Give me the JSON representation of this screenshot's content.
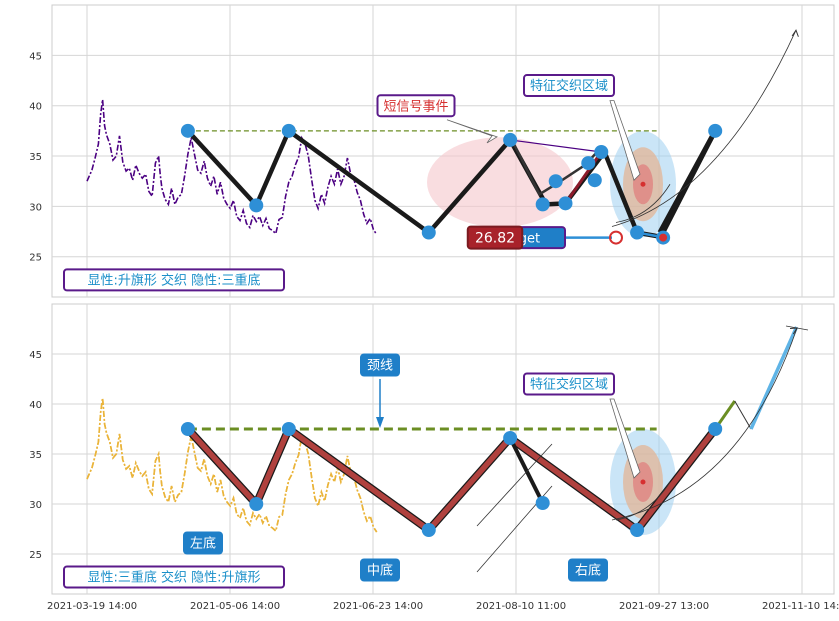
{
  "chart_data": [
    {
      "type": "line",
      "panel": "top",
      "ylim": [
        21,
        50
      ],
      "yticks": [
        25,
        30,
        35,
        40,
        45
      ],
      "xticks": [
        "2021-03-19 14:00",
        "2021-05-06 14:00",
        "2021-06-23 14:00",
        "2021-08-10 11:00",
        "2021-09-27 13:00",
        "2021-11-10 14:00"
      ],
      "grid": true,
      "series": [
        {
          "role": "price",
          "color": "#4b0082",
          "style": "dash-dot",
          "values": [
            [
              0,
              32.5
            ],
            [
              1.5,
              33.6
            ],
            [
              2.5,
              34.8
            ],
            [
              3.5,
              36.2
            ],
            [
              4.2,
              39.2
            ],
            [
              4.8,
              40.6
            ],
            [
              5.4,
              38.0
            ],
            [
              6,
              37.1
            ],
            [
              7,
              36.2
            ],
            [
              8,
              34.6
            ],
            [
              9,
              35.0
            ],
            [
              10,
              37.0
            ],
            [
              11,
              34.4
            ],
            [
              12,
              33.5
            ],
            [
              13,
              33.8
            ],
            [
              14,
              32.6
            ],
            [
              15,
              34.1
            ],
            [
              16,
              33.3
            ],
            [
              17,
              32.8
            ],
            [
              18,
              33.2
            ],
            [
              19,
              31.5
            ],
            [
              20,
              31.0
            ],
            [
              21,
              34.3
            ],
            [
              22,
              35.0
            ],
            [
              22.5,
              33.2
            ],
            [
              23,
              31.8
            ],
            [
              24,
              30.7
            ],
            [
              25,
              30.2
            ],
            [
              26,
              31.8
            ],
            [
              27,
              30.2
            ],
            [
              28,
              30.9
            ],
            [
              29,
              31.2
            ],
            [
              30,
              33.0
            ],
            [
              31,
              35.2
            ],
            [
              32,
              36.8
            ],
            [
              33,
              35.2
            ],
            [
              34,
              33.6
            ],
            [
              35,
              33.3
            ],
            [
              36,
              34.5
            ],
            [
              37,
              32.8
            ],
            [
              38,
              32.0
            ],
            [
              39,
              33.0
            ],
            [
              40,
              31.2
            ],
            [
              41,
              32.4
            ],
            [
              42,
              30.8
            ],
            [
              43,
              30.2
            ],
            [
              44,
              29.8
            ],
            [
              45,
              30.6
            ],
            [
              46,
              29.0
            ],
            [
              47,
              28.6
            ],
            [
              48,
              29.6
            ],
            [
              49,
              28.3
            ],
            [
              50,
              27.9
            ],
            [
              51,
              29.1
            ],
            [
              52,
              28.5
            ],
            [
              53,
              29.0
            ],
            [
              54,
              28.1
            ],
            [
              55,
              28.8
            ],
            [
              56,
              27.8
            ],
            [
              57,
              27.6
            ],
            [
              58,
              27.3
            ],
            [
              59,
              28.7
            ],
            [
              60,
              28.9
            ],
            [
              61,
              31.0
            ],
            [
              62,
              32.4
            ],
            [
              63,
              33.0
            ],
            [
              64,
              34.1
            ],
            [
              65,
              34.9
            ],
            [
              66,
              36.8
            ],
            [
              67,
              36.2
            ],
            [
              68,
              35.0
            ],
            [
              69,
              32.7
            ],
            [
              70,
              30.6
            ],
            [
              71,
              29.8
            ],
            [
              72,
              31.2
            ],
            [
              73,
              30.3
            ],
            [
              74,
              31.9
            ],
            [
              75,
              33.0
            ],
            [
              76,
              32.2
            ],
            [
              77,
              33.7
            ],
            [
              78,
              32.2
            ],
            [
              79,
              33.0
            ],
            [
              80,
              34.8
            ],
            [
              81,
              33.2
            ],
            [
              82,
              32.7
            ],
            [
              83,
              31.4
            ],
            [
              84,
              30.6
            ],
            [
              85,
              29.2
            ],
            [
              86,
              28.3
            ],
            [
              87,
              28.8
            ],
            [
              88,
              27.7
            ],
            [
              89,
              27.2
            ]
          ]
        },
        {
          "role": "resistance",
          "color": "#6b8e23",
          "style": "dashed",
          "x": [
            31,
            175
          ],
          "values": [
            37.5,
            37.5
          ]
        },
        {
          "role": "pattern",
          "color": "#1a1a1a",
          "points": [
            [
              31,
              37.5
            ],
            [
              52,
              30.1
            ],
            [
              62,
              37.5
            ],
            [
              105,
              27.4
            ],
            [
              130,
              36.6
            ],
            [
              141,
              30.2
            ],
            [
              147,
              30.3
            ],
            [
              159,
              35.4
            ],
            [
              169,
              27.4
            ],
            [
              176,
              27.0
            ],
            [
              177,
              27.4
            ],
            [
              193,
              37.5
            ]
          ]
        },
        {
          "role": "inner-pattern",
          "color": "#1a1a1a",
          "points": [
            [
              131,
              36.3
            ],
            [
              139,
              31.2
            ],
            [
              145,
              32.4
            ],
            [
              153,
              34.1
            ],
            [
              157,
              35.5
            ]
          ]
        },
        {
          "role": "forecast",
          "color": "#000000",
          "points": [
            [
              176,
              27.0
            ],
            [
              180,
              33.2
            ],
            [
              185,
              38.0
            ],
            [
              193,
              37.5
            ]
          ]
        }
      ],
      "markers": [
        [
          31,
          37.5
        ],
        [
          52,
          30.1
        ],
        [
          62,
          37.5
        ],
        [
          105,
          27.4
        ],
        [
          130,
          36.6
        ],
        [
          140,
          30.2
        ],
        [
          144,
          32.5
        ],
        [
          147,
          30.3
        ],
        [
          154,
          34.3
        ],
        [
          156,
          32.6
        ],
        [
          158,
          35.4
        ],
        [
          169,
          27.4
        ],
        [
          177,
          26.9
        ],
        [
          193,
          37.5
        ]
      ],
      "annotations": {
        "short_signal": "短信号事件",
        "feature_zone": "特征交织区域",
        "target": "Target",
        "value": "26.82",
        "pattern": "显性:升旗形 交织 隐性:三重底"
      }
    },
    {
      "type": "line",
      "panel": "bottom",
      "ylim": [
        21,
        50
      ],
      "yticks": [
        25,
        30,
        35,
        40,
        45
      ],
      "xticks": [
        "2021-03-19 14:00",
        "2021-05-06 14:00",
        "2021-06-23 14:00",
        "2021-08-10 11:00",
        "2021-09-27 13:00",
        "2021-11-10 14:00"
      ],
      "grid": true,
      "series": [
        {
          "role": "price",
          "color": "#eab43a",
          "style": "dash-dot"
        },
        {
          "role": "neckline",
          "color": "#6b8e23",
          "style": "dashed",
          "x": [
            31,
            175
          ],
          "values": [
            37.5,
            37.5
          ]
        },
        {
          "role": "triple-bottom",
          "color": "#b0413e",
          "points": [
            [
              31,
              37.5
            ],
            [
              52,
              30.0
            ],
            [
              62,
              37.5
            ],
            [
              105,
              27.4
            ],
            [
              130,
              36.6
            ],
            [
              169,
              27.4
            ],
            [
              193,
              37.5
            ]
          ]
        },
        {
          "role": "forecast",
          "points": [
            [
              193,
              37.5
            ],
            [
              199,
              40.3
            ],
            [
              204,
              37.5
            ],
            [
              218,
              47.7
            ]
          ]
        }
      ],
      "markers": [
        [
          31,
          37.5
        ],
        [
          52,
          30.0
        ],
        [
          62,
          37.5
        ],
        [
          105,
          27.4
        ],
        [
          130,
          36.6
        ],
        [
          140,
          30.1
        ],
        [
          169,
          27.4
        ],
        [
          193,
          37.5
        ]
      ],
      "annotations": {
        "neckline": "颈线",
        "feature_zone": "特征交织区域",
        "left_bottom": "左底",
        "middle_bottom": "中底",
        "right_bottom": "右底",
        "pattern": "显性:三重底 交织 隐性:升旗形"
      }
    }
  ],
  "colors": {
    "marker": "#2e8fd6",
    "label_border": "#5a1a8a",
    "label_text": "#1a8fc9",
    "red_label": "#a8222a",
    "zone": "#9ed0f0",
    "ellipse": "#f5c6cb"
  }
}
